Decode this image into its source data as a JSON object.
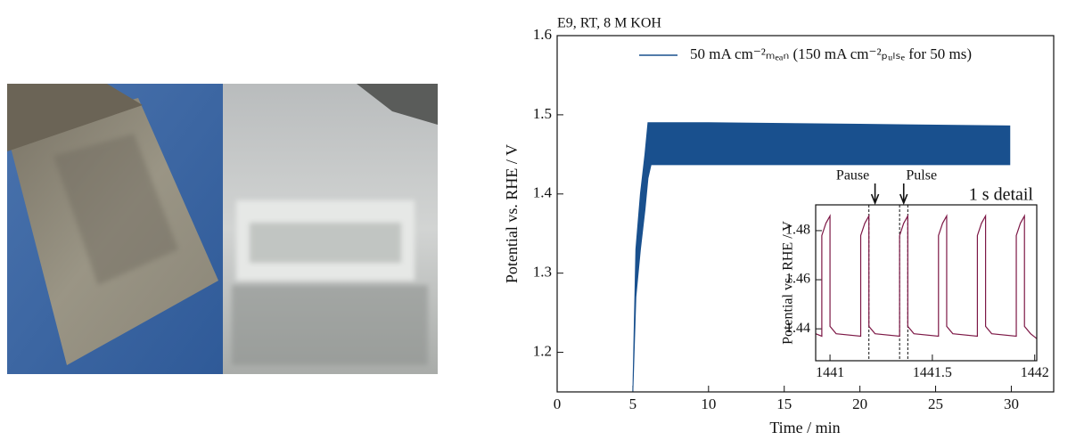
{
  "chart_data": [
    {
      "type": "band",
      "title": "E9, RT, 8 M KOH",
      "x_label": "Time / min",
      "y_label": "Potential vs. RHE / V",
      "xlim": [
        0,
        32.8
      ],
      "ylim": [
        1.15,
        1.6
      ],
      "xticks": [
        0,
        5,
        10,
        15,
        20,
        25,
        30
      ],
      "yticks": [
        1.2,
        1.3,
        1.4,
        1.5,
        1.6
      ],
      "legend": "upper right",
      "series": [
        {
          "name": "50 mA cm⁻²ₘₑₐₙ (150 mA cm⁻²ₚᵤₗₛₑ for 50 ms)",
          "color": "#19508e",
          "x": [
            5,
            5.2,
            5.5,
            5.8,
            6.0,
            6.2,
            10,
            20,
            29.9
          ],
          "upper": [
            1.15,
            1.33,
            1.4,
            1.45,
            1.49,
            1.49,
            1.49,
            1.488,
            1.486
          ],
          "lower": [
            1.15,
            1.27,
            1.33,
            1.38,
            1.42,
            1.437,
            1.437,
            1.437,
            1.437
          ]
        }
      ]
    },
    {
      "type": "line",
      "title": "1 s detail",
      "y_label": "Potential vs. RHE / V",
      "xlim": [
        1440.93,
        1442.01
      ],
      "ylim": [
        1.427,
        1.4905
      ],
      "xticks": [
        1441,
        1441.5,
        1442
      ],
      "yticks": [
        1.44,
        1.46,
        1.48
      ],
      "vlines": [
        1441.19,
        1441.34,
        1441.38
      ],
      "annotations": [
        {
          "text": "Pause",
          "x": 1441.22
        },
        {
          "text": "Pulse",
          "x": 1441.36
        }
      ],
      "series": [
        {
          "color": "#7d1846",
          "x": [
            1440.93,
            1440.96,
            1440.96,
            1440.98,
            1441.0,
            1441.0,
            1441.03,
            1441.15,
            1441.15,
            1441.17,
            1441.19,
            1441.19,
            1441.22,
            1441.34,
            1441.34,
            1441.36,
            1441.38,
            1441.38,
            1441.41,
            1441.53,
            1441.53,
            1441.55,
            1441.57,
            1441.57,
            1441.6,
            1441.72,
            1441.72,
            1441.74,
            1441.76,
            1441.76,
            1441.79,
            1441.91,
            1441.91,
            1441.93,
            1441.95,
            1441.95,
            1441.98,
            1442.01
          ],
          "values": [
            1.438,
            1.437,
            1.478,
            1.483,
            1.486,
            1.441,
            1.438,
            1.437,
            1.478,
            1.483,
            1.486,
            1.441,
            1.438,
            1.437,
            1.478,
            1.483,
            1.486,
            1.441,
            1.438,
            1.437,
            1.478,
            1.483,
            1.486,
            1.441,
            1.438,
            1.437,
            1.478,
            1.483,
            1.486,
            1.441,
            1.438,
            1.437,
            1.478,
            1.483,
            1.486,
            1.441,
            1.438,
            1.436
          ]
        }
      ]
    }
  ]
}
